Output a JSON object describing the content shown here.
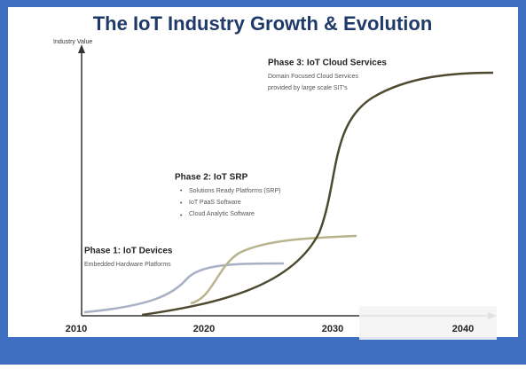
{
  "title": "The IoT Industry Growth & Evolution",
  "y_axis_label": "Industry Value",
  "x_axis": {
    "ticks": [
      "2010",
      "2020",
      "2030",
      "2040"
    ]
  },
  "phases": [
    {
      "title": "Phase 1: IoT Devices",
      "lines": [
        "Embedded Hardware Platforms"
      ]
    },
    {
      "title": "Phase 2: IoT SRP",
      "lines": [
        "Solutions Ready Platforms (SRP)",
        "IoT PaaS Software",
        "Cloud Analytic Software"
      ]
    },
    {
      "title": "Phase 3: IoT Cloud Services",
      "lines": [
        "Domain Focused Cloud Services",
        "provided by large scale SIT's"
      ]
    }
  ]
}
